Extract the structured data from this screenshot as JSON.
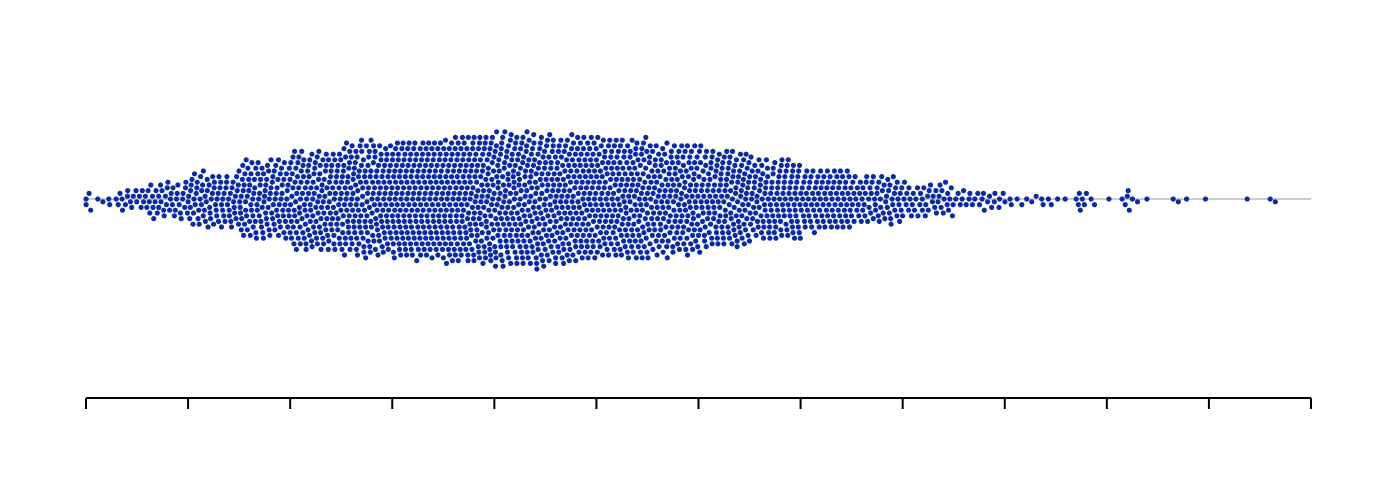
{
  "chart_data": {
    "type": "beeswarm",
    "title": "",
    "xlabel": "",
    "ylabel": "",
    "xlim": [
      0,
      12
    ],
    "x_ticks": [
      0,
      1,
      2,
      3,
      4,
      5,
      6,
      7,
      8,
      9,
      10,
      11,
      12
    ],
    "x_tick_labels_shown": false,
    "grid": false,
    "legend": "none",
    "point_color": "#0a2aa8",
    "baseline_color": "#cccccc",
    "axis_color": "#000000",
    "point_count_approx": 2200,
    "distribution": {
      "min": 0.0,
      "max": 11.7,
      "peak_x": 4.1,
      "density_profile": [
        {
          "x": 0.0,
          "rel_density": 0.01
        },
        {
          "x": 0.3,
          "rel_density": 0.1
        },
        {
          "x": 0.6,
          "rel_density": 0.2
        },
        {
          "x": 1.0,
          "rel_density": 0.31
        },
        {
          "x": 1.5,
          "rel_density": 0.48
        },
        {
          "x": 2.0,
          "rel_density": 0.67
        },
        {
          "x": 2.5,
          "rel_density": 0.8
        },
        {
          "x": 3.0,
          "rel_density": 0.89
        },
        {
          "x": 3.5,
          "rel_density": 0.95
        },
        {
          "x": 4.0,
          "rel_density": 1.0
        },
        {
          "x": 4.5,
          "rel_density": 0.98
        },
        {
          "x": 5.0,
          "rel_density": 0.93
        },
        {
          "x": 5.5,
          "rel_density": 0.86
        },
        {
          "x": 6.0,
          "rel_density": 0.77
        },
        {
          "x": 6.5,
          "rel_density": 0.66
        },
        {
          "x": 7.0,
          "rel_density": 0.53
        },
        {
          "x": 7.5,
          "rel_density": 0.4
        },
        {
          "x": 8.0,
          "rel_density": 0.29
        },
        {
          "x": 8.5,
          "rel_density": 0.16
        },
        {
          "x": 9.0,
          "rel_density": 0.08
        },
        {
          "x": 9.5,
          "rel_density": 0.035
        },
        {
          "x": 10.0,
          "rel_density": 0.02
        },
        {
          "x": 10.5,
          "rel_density": 0.012
        },
        {
          "x": 11.0,
          "rel_density": 0.008
        },
        {
          "x": 11.5,
          "rel_density": 0.002
        },
        {
          "x": 12.0,
          "rel_density": 0.0
        }
      ],
      "outliers": [
        0.0,
        0.03,
        9.7,
        9.72,
        9.74,
        9.76,
        9.78,
        9.8,
        10.15,
        10.18,
        10.2,
        10.22,
        10.25,
        10.65,
        10.7,
        11.6,
        11.65
      ]
    }
  }
}
